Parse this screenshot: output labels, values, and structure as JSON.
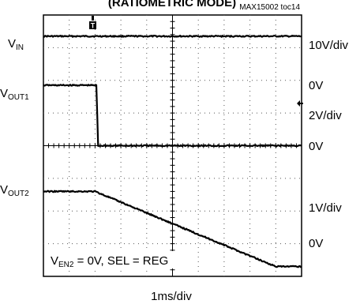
{
  "chart_data": {
    "type": "line",
    "title": "(RATIOMETRIC MODE)",
    "figure_id": "MAX15002 toc14",
    "time_scale": "1ms/div",
    "annotation": {
      "pre": "V",
      "sub": "EN2",
      "post": " = 0V, SEL = REG"
    },
    "trigger_marker": "T",
    "grid": {
      "x_divs": 10,
      "y_divs": 8
    },
    "channels": [
      {
        "label_main": "V",
        "label_sub": "IN",
        "scale": "10V/div",
        "ground_label": "",
        "color": "#000000",
        "points": [
          [
            0,
            7.35
          ],
          [
            10,
            7.35
          ]
        ]
      },
      {
        "label_main": "V",
        "label_sub": "OUT1",
        "scale": "2V/div",
        "ground_label": "0V",
        "top_label": "0V",
        "color": "#000000",
        "points": [
          [
            0,
            5.85
          ],
          [
            2.05,
            5.85
          ],
          [
            2.12,
            4.0
          ],
          [
            10,
            4.0
          ]
        ]
      },
      {
        "label_main": "V",
        "label_sub": "OUT2",
        "scale": "1V/div",
        "ground_label": "0V",
        "color": "#000000",
        "points": [
          [
            0,
            2.6
          ],
          [
            2.0,
            2.6
          ],
          [
            9.0,
            0.3
          ],
          [
            10,
            0.3
          ]
        ]
      }
    ]
  }
}
